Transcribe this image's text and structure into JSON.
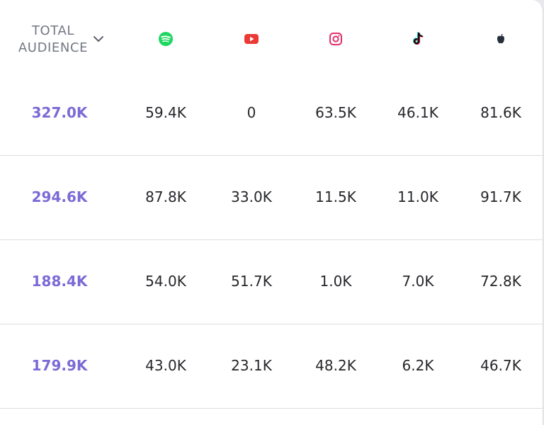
{
  "header": {
    "total_line1": "TOTAL",
    "total_line2": "AUDIENCE",
    "sort_icon": "chevron-down-icon",
    "platforms": [
      {
        "name": "spotify",
        "icon": "spotify-icon",
        "color": "#1ed760"
      },
      {
        "name": "youtube",
        "icon": "youtube-icon",
        "color": "#ea3a35"
      },
      {
        "name": "instagram",
        "icon": "instagram-icon",
        "color": "#e1306c"
      },
      {
        "name": "tiktok",
        "icon": "tiktok-icon",
        "color": "#111111"
      },
      {
        "name": "apple",
        "icon": "apple-icon",
        "color": "#25303b"
      }
    ]
  },
  "colors": {
    "total_accent": "#7c6ad6",
    "value_text": "#26272b",
    "header_text": "#737883",
    "divider": "#dedee2"
  },
  "rows": [
    {
      "total": "327.0K",
      "spotify": "59.4K",
      "youtube": "0",
      "instagram": "63.5K",
      "tiktok": "46.1K",
      "apple": "81.6K"
    },
    {
      "total": "294.6K",
      "spotify": "87.8K",
      "youtube": "33.0K",
      "instagram": "11.5K",
      "tiktok": "11.0K",
      "apple": "91.7K"
    },
    {
      "total": "188.4K",
      "spotify": "54.0K",
      "youtube": "51.7K",
      "instagram": "1.0K",
      "tiktok": "7.0K",
      "apple": "72.8K"
    },
    {
      "total": "179.9K",
      "spotify": "43.0K",
      "youtube": "23.1K",
      "instagram": "48.2K",
      "tiktok": "6.2K",
      "apple": "46.7K"
    }
  ]
}
